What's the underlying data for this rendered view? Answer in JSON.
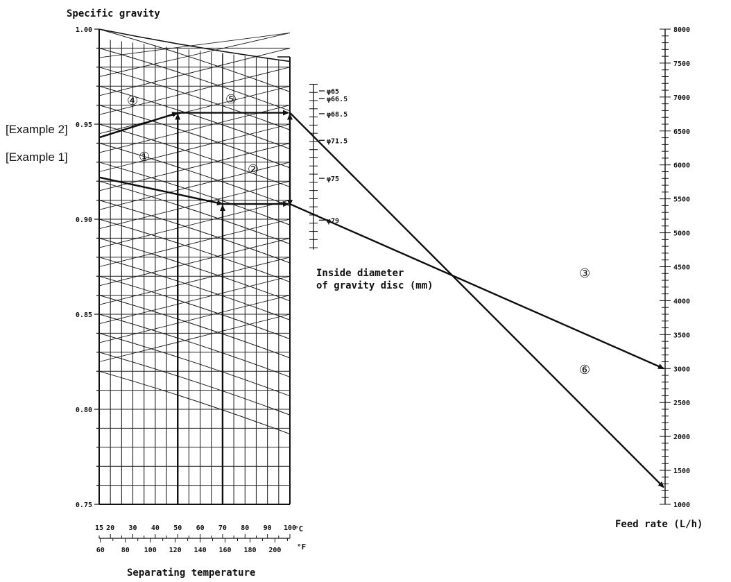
{
  "chart_data": {
    "type": "nomogram",
    "title": "",
    "left_axis": {
      "label": "Specific gravity",
      "min": 0.75,
      "max": 1.0,
      "ticks": [
        {
          "v": 1.0,
          "t": "1.00"
        },
        {
          "v": 0.95,
          "t": "0.95"
        },
        {
          "v": 0.9,
          "t": "0.90"
        },
        {
          "v": 0.85,
          "t": "0.85"
        },
        {
          "v": 0.8,
          "t": "0.80"
        },
        {
          "v": 0.75,
          "t": "0.75"
        }
      ]
    },
    "temperature_axis": {
      "label": "Separating temperature",
      "celsius_unit": "°C",
      "fahrenheit_unit": "°F",
      "celsius_min": 15,
      "celsius_max": 100,
      "celsius_labels": [
        {
          "v": 15,
          "t": "15"
        },
        {
          "v": 20,
          "t": "20"
        },
        {
          "v": 30,
          "t": "30"
        },
        {
          "v": 40,
          "t": "40"
        },
        {
          "v": 50,
          "t": "50"
        },
        {
          "v": 60,
          "t": "60"
        },
        {
          "v": 70,
          "t": "70"
        },
        {
          "v": 80,
          "t": "80"
        },
        {
          "v": 90,
          "t": "90"
        },
        {
          "v": 100,
          "t": "100"
        }
      ],
      "fahrenheit_labels": [
        {
          "v": 60,
          "t": "60"
        },
        {
          "v": 80,
          "t": "80"
        },
        {
          "v": 100,
          "t": "100"
        },
        {
          "v": 120,
          "t": "120"
        },
        {
          "v": 140,
          "t": "140"
        },
        {
          "v": 160,
          "t": "160"
        },
        {
          "v": 180,
          "t": "180"
        },
        {
          "v": 200,
          "t": "200"
        }
      ]
    },
    "disc_scale": {
      "label_line1": "Inside diameter",
      "label_line2": "of gravity disc (mm)",
      "marks": [
        {
          "v": 65,
          "t": "φ65",
          "sg": 0.9675
        },
        {
          "v": 66.5,
          "t": "φ66.5",
          "sg": 0.9635
        },
        {
          "v": 68.5,
          "t": "φ68.5",
          "sg": 0.9555
        },
        {
          "v": 71.5,
          "t": "φ71.5",
          "sg": 0.9415
        },
        {
          "v": 75,
          "t": "φ75",
          "sg": 0.9215
        },
        {
          "v": 79,
          "t": "φ79",
          "sg": 0.8995
        }
      ],
      "sg_top": 0.971,
      "sg_bottom": 0.884
    },
    "right_axis": {
      "label": "Feed rate (L/h)",
      "min": 1000,
      "max": 8000,
      "labels": [
        {
          "v": 8000,
          "t": "8000"
        },
        {
          "v": 7500,
          "t": "7500"
        },
        {
          "v": 7000,
          "t": "7000"
        },
        {
          "v": 6500,
          "t": "6500"
        },
        {
          "v": 6000,
          "t": "6000"
        },
        {
          "v": 5500,
          "t": "5500"
        },
        {
          "v": 5000,
          "t": "5000"
        },
        {
          "v": 4500,
          "t": "4500"
        },
        {
          "v": 4000,
          "t": "4000"
        },
        {
          "v": 3500,
          "t": "3500"
        },
        {
          "v": 3000,
          "t": "3000"
        },
        {
          "v": 2500,
          "t": "2500"
        },
        {
          "v": 2000,
          "t": "2000"
        },
        {
          "v": 1500,
          "t": "1500"
        },
        {
          "v": 1000,
          "t": "1000"
        }
      ]
    },
    "examples": [
      {
        "label": "[Example 1]",
        "start_sg": 0.922,
        "temperature_c": 70,
        "corrected_sg": 0.908,
        "disc_mm": 79,
        "feed_rate": 3000,
        "steps": [
          "①",
          "②",
          "③"
        ]
      },
      {
        "label": "[Example 2]",
        "start_sg": 0.943,
        "temperature_c": 50,
        "corrected_sg": 0.956,
        "disc_mm": 68.5,
        "feed_rate": 1250,
        "steps": [
          "④",
          "⑤",
          "⑥"
        ]
      }
    ]
  }
}
